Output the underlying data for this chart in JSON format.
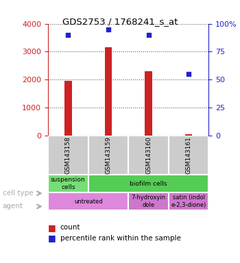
{
  "title": "GDS2753 / 1768241_s_at",
  "samples": [
    "GSM143158",
    "GSM143159",
    "GSM143160",
    "GSM143161"
  ],
  "counts": [
    1950,
    3150,
    2300,
    50
  ],
  "percentiles": [
    90,
    95,
    90,
    55
  ],
  "ylim_left": [
    0,
    4000
  ],
  "ylim_right": [
    0,
    100
  ],
  "yticks_left": [
    0,
    1000,
    2000,
    3000,
    4000
  ],
  "yticks_right": [
    0,
    25,
    50,
    75,
    100
  ],
  "bar_color": "#cc2222",
  "dot_color": "#2222cc",
  "cell_type_colors": [
    "#77dd77",
    "#55cc55"
  ],
  "cell_type_texts": [
    "suspension\ncells",
    "biofilm cells"
  ],
  "cell_type_spans": [
    1,
    3
  ],
  "agent_colors": [
    "#dd88dd",
    "#cc77cc",
    "#cc77cc"
  ],
  "agent_texts": [
    "untreated",
    "7-hydroxyin\ndole",
    "satin (indol\ne-2,3-dione)"
  ],
  "agent_spans": [
    2,
    1,
    1
  ],
  "legend_count_color": "#cc2222",
  "legend_dot_color": "#2222cc",
  "axis_color_left": "#cc2222",
  "axis_color_right": "#2222cc",
  "bg_color": "#ffffff",
  "grid_color": "#555555",
  "sample_box_color": "#cccccc",
  "row_label_color": "#aaaaaa",
  "arrow_color": "#aaaaaa"
}
